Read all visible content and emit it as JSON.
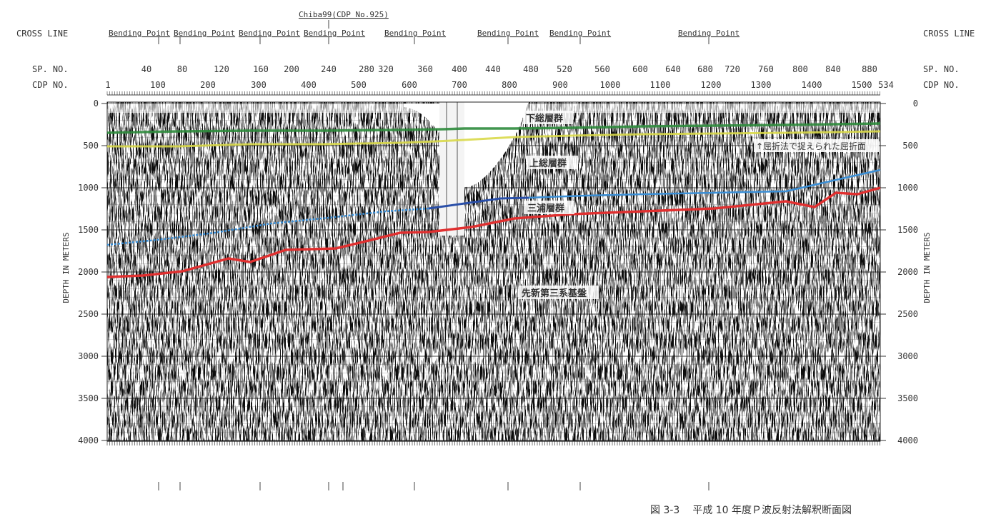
{
  "figure": {
    "number": "図 3-3",
    "title": "平成 10 年度Ｐ波反射法解釈断面図"
  },
  "header": {
    "cross_line_left": "CROSS LINE",
    "cross_line_right": "CROSS LINE",
    "chiba_label": "Chiba99(CDP No.925)",
    "bending_points": [
      "Bending Point",
      "Bending Point",
      "Bending Point",
      "Bending Point",
      "Bending Point",
      "Bending Point",
      "Bending Point",
      "Bending Point"
    ]
  },
  "axes": {
    "sp_label_left": "SP. NO.",
    "sp_label_right": "SP. NO.",
    "cdp_label_left": "CDP NO.",
    "cdp_label_right": "CDP NO.",
    "sp_ticks": [
      "40",
      "80",
      "120",
      "160",
      "200",
      "240",
      "280",
      "320",
      "360",
      "400",
      "440",
      "480",
      "520",
      "560",
      "600",
      "640",
      "680",
      "720",
      "760",
      "800",
      "840",
      "880"
    ],
    "cdp_ticks": [
      "1",
      "100",
      "200",
      "300",
      "400",
      "500",
      "600",
      "700",
      "800",
      "900",
      "1000",
      "1100",
      "1200",
      "1300",
      "1400",
      "1500",
      "534"
    ],
    "depth_label_left": "DEPTH IN METERS",
    "depth_label_right": "DEPTH IN METERS",
    "depth_ticks": [
      "0",
      "500",
      "1000",
      "1500",
      "2000",
      "2500",
      "3000",
      "3500",
      "4000"
    ],
    "depth_range": [
      0,
      4000
    ]
  },
  "section": {
    "inset_label": "下総",
    "formations": {
      "shimosa": "下総層群",
      "kazusa": "上総層群",
      "miura": "三浦層群",
      "basement": "先新第三系基盤"
    },
    "refraction_note": "↑屈折法で捉えられた屈折面"
  },
  "horizon_colors": {
    "shimosa_base": "#2e8b3c",
    "refraction": "#d9d94a",
    "kazusa_base_top": "#3b8fd6",
    "kazusa_base_mid": "#2a4fa8",
    "basement_top": "#e03030"
  }
}
